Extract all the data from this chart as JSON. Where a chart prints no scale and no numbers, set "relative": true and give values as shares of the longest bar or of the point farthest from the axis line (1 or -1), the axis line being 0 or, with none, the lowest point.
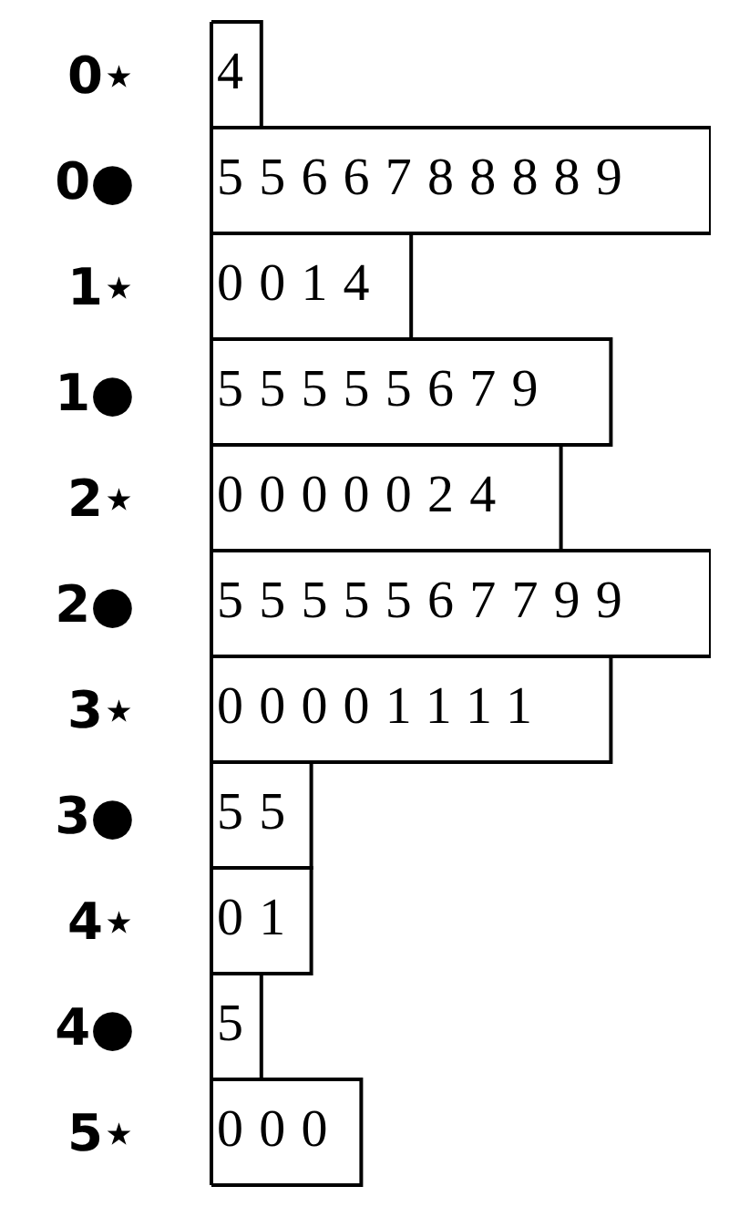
{
  "chart_data": {
    "type": "bar",
    "orientation": "horizontal",
    "relative": true,
    "categories": [
      "0⋆",
      "0●",
      "1⋆",
      "1●",
      "2⋆",
      "2●",
      "3⋆",
      "3●",
      "4⋆",
      "4●",
      "5⋆"
    ],
    "values": [
      0.1,
      1,
      0.4,
      0.8,
      0.7,
      1,
      0.8,
      0.2,
      0.2,
      0.1,
      0.3
    ],
    "annotations": [
      "4",
      "5566788889",
      "0014",
      "55555679",
      "0000024",
      "5555567799",
      "00001111",
      "55",
      "01",
      "5",
      "000"
    ],
    "color": "#ffffff",
    "grid": false,
    "legend": false
  }
}
